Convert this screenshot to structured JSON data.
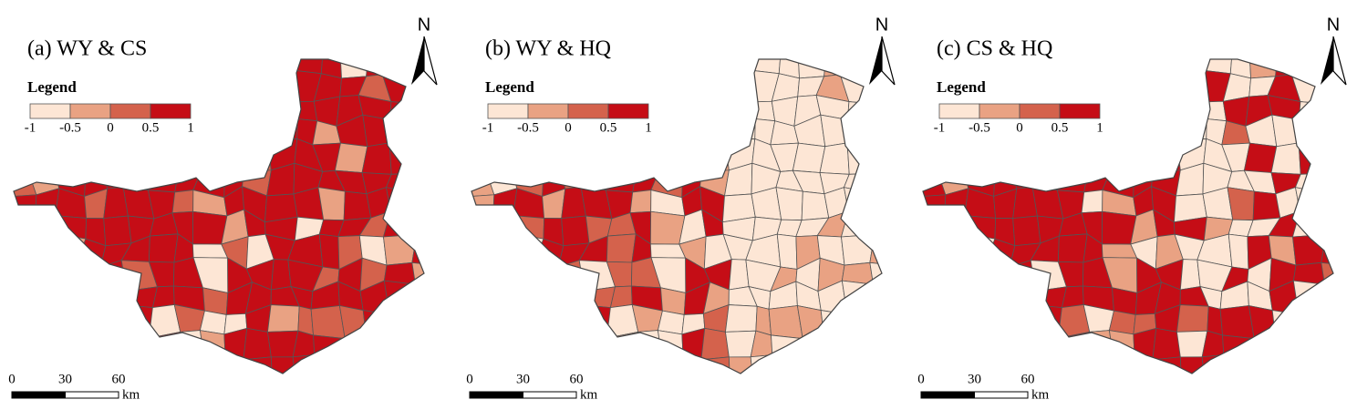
{
  "panels": [
    {
      "title": "(a) WY & CS",
      "legend_title": "Legend",
      "legend_breaks": [
        -1,
        -0.5,
        0,
        0.5,
        1
      ],
      "scale_ticks": [
        0,
        30,
        60
      ],
      "scale_unit": "km",
      "north": "N"
    },
    {
      "title": "(b) WY & HQ",
      "legend_title": "Legend",
      "legend_breaks": [
        -1,
        -0.5,
        0,
        0.5,
        1
      ],
      "scale_ticks": [
        0,
        30,
        60
      ],
      "scale_unit": "km",
      "north": "N"
    },
    {
      "title": "(c) CS & HQ",
      "legend_title": "Legend",
      "legend_breaks": [
        -1,
        -0.5,
        0,
        0.5,
        1
      ],
      "scale_ticks": [
        0,
        30,
        60
      ],
      "scale_unit": "km",
      "north": "N"
    }
  ],
  "legend_colors": [
    "#fde6d5",
    "#e9a283",
    "#d4624c",
    "#c50d16"
  ]
}
